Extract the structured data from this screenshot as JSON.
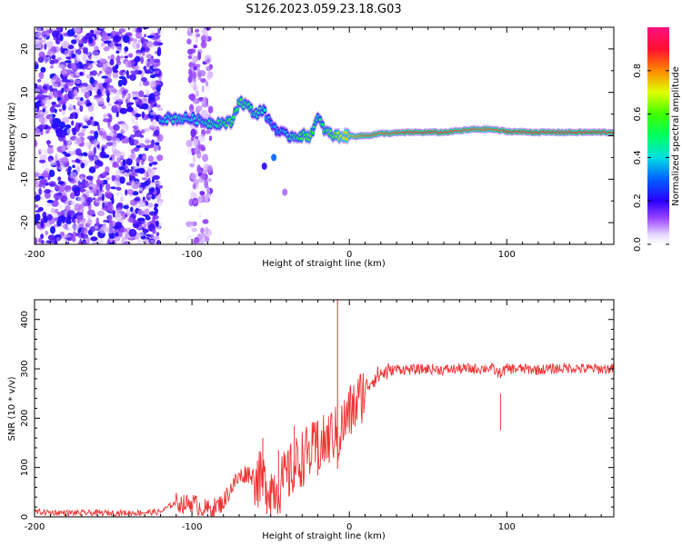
{
  "figure_title": "S126.2023.059.23.18.G03",
  "chart_data": [
    {
      "type": "heatmap",
      "name": "spectrogram",
      "xlabel": "Height of straight line (km)",
      "ylabel": "Frequency (Hz)",
      "xlim": [
        -200,
        168
      ],
      "ylim": [
        -25,
        25
      ],
      "xticks": [
        -200,
        -100,
        0,
        100
      ],
      "xtick_labels": [
        "-200",
        "-100",
        "0",
        "100"
      ],
      "yticks": [
        -20,
        -10,
        0,
        10,
        20
      ],
      "ytick_labels": [
        "-20",
        "-10",
        "0",
        "10",
        "20"
      ],
      "colorbar": {
        "label": "Normalized spectral amplitude",
        "range": [
          0,
          1
        ],
        "ticks": [
          0.0,
          0.2,
          0.4,
          0.6,
          0.8
        ],
        "tick_labels": [
          "0.0",
          "0.2",
          "0.4",
          "0.6",
          "0.8"
        ]
      },
      "signal_track": {
        "x": [
          -120,
          -110,
          -100,
          -90,
          -80,
          -75,
          -70,
          -65,
          -60,
          -55,
          -50,
          -45,
          -40,
          -35,
          -30,
          -25,
          -20,
          -15,
          -10,
          -5,
          0,
          10,
          20,
          40,
          60,
          80,
          90,
          100,
          120,
          140,
          168
        ],
        "freq": [
          4,
          4,
          4,
          3,
          3,
          3,
          8,
          7,
          5,
          6,
          3,
          1,
          0,
          0,
          0,
          0,
          4,
          1,
          0,
          0,
          0,
          0,
          0.5,
          0.8,
          0.8,
          1.5,
          1.5,
          1.0,
          0.8,
          0.8,
          0.8
        ],
        "amplitude": [
          0.4,
          0.45,
          0.4,
          0.45,
          0.5,
          0.55,
          0.55,
          0.5,
          0.45,
          0.45,
          0.35,
          0.35,
          0.4,
          0.5,
          0.55,
          0.6,
          0.45,
          0.55,
          0.6,
          0.7,
          0.75,
          0.85,
          0.85,
          0.9,
          0.9,
          0.85,
          0.85,
          0.9,
          0.9,
          0.9,
          0.9
        ]
      },
      "noise_region_x": [
        -200,
        -120
      ]
    },
    {
      "type": "line",
      "name": "snr",
      "xlabel": "Height of straight line (km)",
      "ylabel": "SNR (10 * v/v)",
      "xlim": [
        -200,
        168
      ],
      "ylim": [
        0,
        440
      ],
      "xticks": [
        -200,
        -100,
        0,
        100
      ],
      "xtick_labels": [
        "-200",
        "-100",
        "0",
        "100"
      ],
      "yticks": [
        0,
        100,
        200,
        300,
        400
      ],
      "ytick_labels": [
        "0",
        "100",
        "200",
        "300",
        "400"
      ],
      "color": "#ee3333",
      "series": [
        {
          "name": "SNR",
          "x": [
            -200,
            -180,
            -160,
            -140,
            -120,
            -110,
            -105,
            -100,
            -95,
            -90,
            -85,
            -80,
            -75,
            -70,
            -65,
            -60,
            -55,
            -50,
            -45,
            -40,
            -35,
            -30,
            -25,
            -20,
            -15,
            -10,
            -7,
            -5,
            0,
            5,
            10,
            15,
            20,
            25,
            30,
            40,
            50,
            60,
            70,
            80,
            90,
            95,
            100,
            110,
            120,
            130,
            140,
            150,
            160,
            168
          ],
          "y": [
            10,
            8,
            8,
            8,
            10,
            30,
            25,
            30,
            20,
            15,
            20,
            30,
            60,
            80,
            90,
            80,
            70,
            60,
            60,
            80,
            100,
            120,
            130,
            140,
            150,
            170,
            160,
            180,
            210,
            230,
            260,
            280,
            290,
            295,
            300,
            298,
            300,
            298,
            300,
            300,
            302,
            290,
            300,
            300,
            298,
            300,
            302,
            300,
            300,
            300
          ]
        }
      ],
      "spikes": [
        {
          "x": -7.5,
          "y": 440
        },
        {
          "x": -55,
          "y": 160
        },
        {
          "x": -45,
          "y": 135
        },
        {
          "x": -35,
          "y": 185
        },
        {
          "x": -20,
          "y": 195
        },
        {
          "x": 96,
          "y": 250
        }
      ]
    }
  ]
}
